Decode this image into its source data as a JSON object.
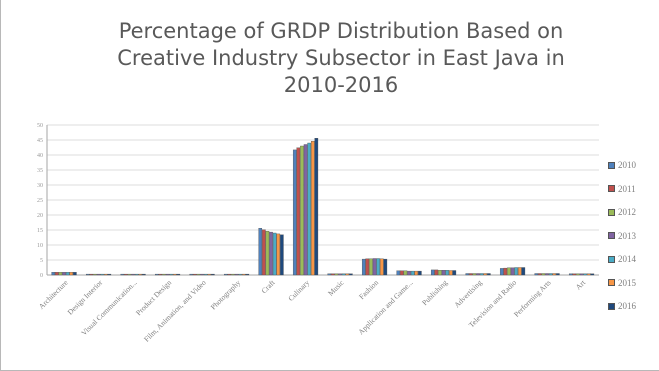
{
  "chart_data": {
    "type": "bar",
    "title": "Percentage of GRDP Distribution Based on Creative Industry Subsector in East Java in 2010-2016",
    "title_lines": [
      "Percentage of GRDP Distribution Based on",
      "Creative Industry Subsector in East Java in",
      "2010-2016"
    ],
    "xlabel": "",
    "ylabel": "",
    "ylim": [
      0,
      50
    ],
    "y_ticks": [
      "50",
      "45",
      "40",
      "35",
      "30",
      "25",
      "20",
      "15",
      "10",
      "5",
      "0"
    ],
    "grid": true,
    "legend_position": "right",
    "categories": [
      "Architecture",
      "Design Interior",
      "Visual Communication...",
      "Product Design",
      "Film, Animation, and Video",
      "Photography",
      "Craft",
      "Culinary",
      "Music",
      "Fashion",
      "Application and Game...",
      "Publishing",
      "Advertising",
      "Television and Radio",
      "Performing Arts",
      "Art"
    ],
    "series": [
      {
        "name": "2010",
        "color": "#4f81bd",
        "values": [
          0.9,
          0.3,
          0.3,
          0.3,
          0.3,
          0.3,
          15.6,
          41.7,
          0.4,
          5.3,
          1.4,
          1.7,
          0.5,
          2.2,
          0.5,
          0.4
        ]
      },
      {
        "name": "2011",
        "color": "#c0504d",
        "values": [
          0.9,
          0.3,
          0.3,
          0.3,
          0.3,
          0.3,
          15.1,
          42.4,
          0.4,
          5.4,
          1.4,
          1.7,
          0.5,
          2.3,
          0.5,
          0.4
        ]
      },
      {
        "name": "2012",
        "color": "#9bbb59",
        "values": [
          0.9,
          0.3,
          0.3,
          0.3,
          0.3,
          0.3,
          14.6,
          43.0,
          0.4,
          5.4,
          1.4,
          1.6,
          0.5,
          2.4,
          0.5,
          0.4
        ]
      },
      {
        "name": "2013",
        "color": "#8064a2",
        "values": [
          0.9,
          0.3,
          0.3,
          0.3,
          0.3,
          0.3,
          14.3,
          43.5,
          0.4,
          5.5,
          1.3,
          1.6,
          0.5,
          2.4,
          0.5,
          0.4
        ]
      },
      {
        "name": "2014",
        "color": "#4bacc6",
        "values": [
          0.9,
          0.3,
          0.3,
          0.3,
          0.3,
          0.3,
          14.0,
          44.0,
          0.4,
          5.5,
          1.3,
          1.6,
          0.5,
          2.5,
          0.5,
          0.4
        ]
      },
      {
        "name": "2015",
        "color": "#f79646",
        "values": [
          0.9,
          0.3,
          0.3,
          0.3,
          0.3,
          0.3,
          13.7,
          44.6,
          0.4,
          5.4,
          1.3,
          1.5,
          0.5,
          2.5,
          0.5,
          0.4
        ]
      },
      {
        "name": "2016",
        "color": "#1f497d",
        "values": [
          0.9,
          0.3,
          0.3,
          0.3,
          0.3,
          0.3,
          13.4,
          45.6,
          0.4,
          5.3,
          1.3,
          1.5,
          0.5,
          2.5,
          0.5,
          0.4
        ]
      }
    ]
  }
}
